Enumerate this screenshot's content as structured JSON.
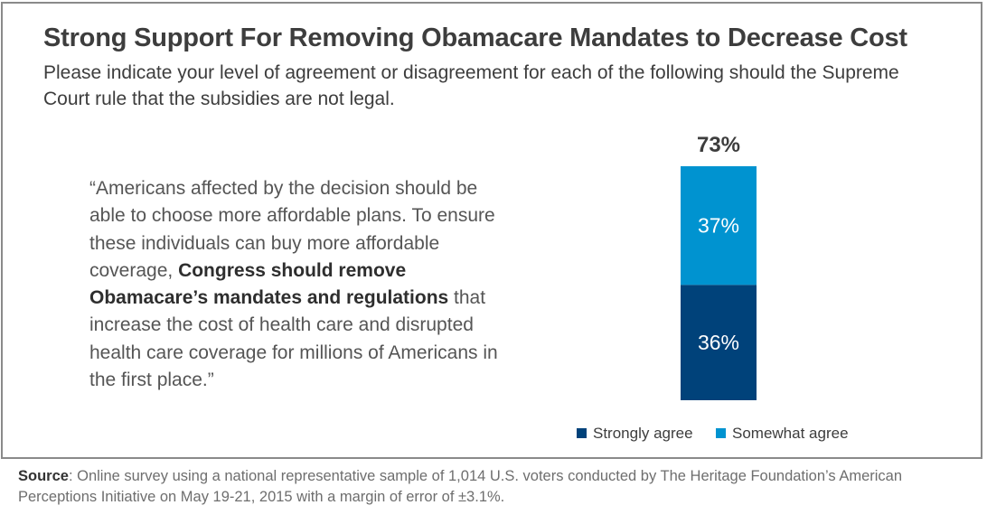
{
  "title": "Strong Support For Removing Obamacare Mandates to Decrease Cost",
  "subtitle": "Please indicate your level of agreement or disagreement for each of the following should the Supreme Court rule that the subsidies are not legal.",
  "quote": {
    "part1": "“Americans affected by the decision should be able to choose more affordable plans. To ensure these individuals can buy more affordable coverage, ",
    "bold": "Congress should remove Obamacare’s mandates and regulations",
    "part2": " that increase the cost of health care and disrupted health care coverage for millions of Americans in the first place.”"
  },
  "chart_data": {
    "type": "bar",
    "stacked": true,
    "categories": [
      ""
    ],
    "series": [
      {
        "name": "Strongly agree",
        "values": [
          36
        ],
        "color": "#00427a",
        "label": "36%"
      },
      {
        "name": "Somewhat agree",
        "values": [
          37
        ],
        "color": "#0093d0",
        "label": "37%"
      }
    ],
    "total_label": "73%",
    "ylim": [
      0,
      73
    ],
    "legend_position": "bottom",
    "grid": false
  },
  "footer": {
    "source_label": "Source",
    "source_text": ": Online survey using a national representative sample of 1,014 U.S. voters conducted by The Heritage Foundation’s American Perceptions Initiative on May 19-21, 2015 with a margin of error of ±3.1%."
  }
}
